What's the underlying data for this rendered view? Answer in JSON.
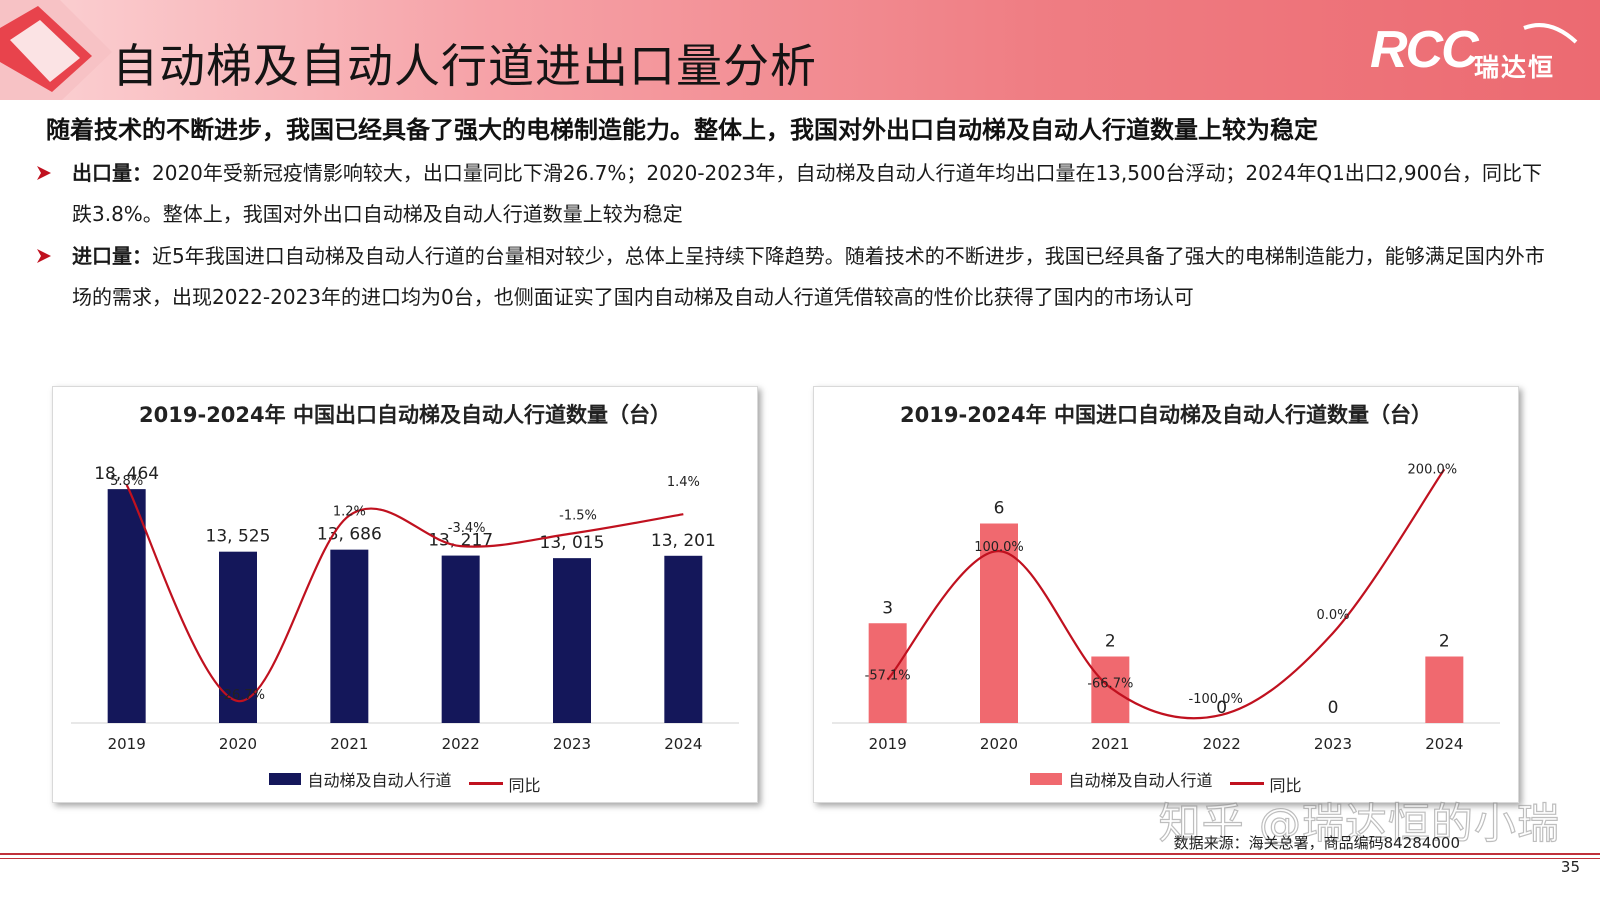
{
  "header": {
    "title": "自动梯及自动人行道进出口量分析",
    "brand_rcc": "RCC",
    "brand_cn": "瑞达恒"
  },
  "headline": "随着技术的不断进步，我国已经具备了强大的电梯制造能力。整体上，我国对外出口自动梯及自动人行道数量上较为稳定",
  "bullets": [
    {
      "label": "出口量：",
      "text": "2020年受新冠疫情影响较大，出口量同比下滑26.7%；2020-2023年，自动梯及自动人行道年均出口量在13,500台浮动；2024年Q1出口2,900台，同比下跌3.8%。整体上，我国对外出口自动梯及自动人行道数量上较为稳定"
    },
    {
      "label": "进口量：",
      "text": "近5年我国进口自动梯及自动人行道的台量相对较少，总体上呈持续下降趋势。随着技术的不断进步，我国已经具备了强大的电梯制造能力，能够满足国内外市场的需求，出现2022-2023年的进口均为0台，也侧面证实了国内自动梯及自动人行道凭借较高的性价比获得了国内的市场认可"
    }
  ],
  "colors": {
    "export_bar": "#14175a",
    "import_bar": "#f0696f",
    "line": "#c0111f",
    "accent": "#c0313b"
  },
  "chart_data": [
    {
      "type": "bar",
      "title": "2019-2024年  中国出口自动梯及自动人行道数量（台）",
      "categories": [
        "2019",
        "2020",
        "2021",
        "2022",
        "2023",
        "2024"
      ],
      "ylim": [
        0,
        21000
      ],
      "series": [
        {
          "name": "自动梯及自动人行道",
          "type": "bar",
          "values": [
            18464,
            13525,
            13686,
            13217,
            13015,
            13201
          ],
          "labels": [
            "18, 464",
            "13, 525",
            "13, 686",
            "13, 217",
            "13, 015",
            "13, 201"
          ]
        },
        {
          "name": "同比",
          "type": "line",
          "values": [
            5.8,
            -26.7,
            1.2,
            -3.4,
            -1.5,
            1.4
          ],
          "labels": [
            "5.8%",
            "-26.7%",
            "1.2%",
            "-3.4%",
            "-1.5%",
            "1.4%"
          ],
          "ylim": [
            -30,
            10
          ]
        }
      ],
      "legend": "bottom",
      "grid": false
    },
    {
      "type": "bar",
      "title": "2019-2024年  中国进口自动梯及自动人行道数量（台）",
      "categories": [
        "2019",
        "2020",
        "2021",
        "2022",
        "2023",
        "2024"
      ],
      "ylim": [
        0,
        8
      ],
      "series": [
        {
          "name": "自动梯及自动人行道",
          "type": "bar",
          "values": [
            3,
            6,
            2,
            0,
            0,
            2
          ],
          "labels": [
            "3",
            "6",
            "2",
            "0",
            "0",
            "2"
          ]
        },
        {
          "name": "同比",
          "type": "line",
          "values": [
            -57.1,
            100.0,
            -66.7,
            -100.0,
            0.0,
            200.0
          ],
          "labels": [
            "-57.1%",
            "100.0%",
            "-66.7%",
            "-100.0%",
            "0.0%",
            "200.0%"
          ],
          "ylim": [
            -110,
            215
          ]
        }
      ],
      "legend": "bottom",
      "grid": false
    }
  ],
  "source": "数据来源：海关总署，商品编码84284000",
  "watermark": "知乎 @瑞达恒的小瑞",
  "page_number": "35"
}
